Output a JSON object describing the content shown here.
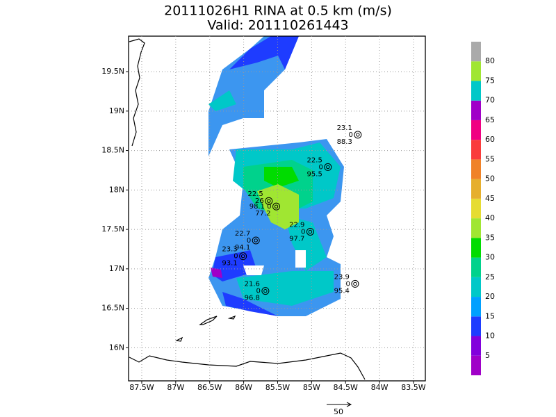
{
  "title": [
    "20111026H1 RINA at 0.5 km (m/s)",
    "Valid: 201110261443"
  ],
  "map": {
    "xlim": [
      -87.694,
      -83.326
    ],
    "ylim": [
      15.58,
      19.95
    ],
    "xticks": [
      {
        "value": -87.5,
        "label": "87.5W"
      },
      {
        "value": -87,
        "label": "87W"
      },
      {
        "value": -86.5,
        "label": "86.5W"
      },
      {
        "value": -86,
        "label": "86W"
      },
      {
        "value": -85.5,
        "label": "85.5W"
      },
      {
        "value": -85,
        "label": "85W"
      },
      {
        "value": -84.5,
        "label": "84.5W"
      },
      {
        "value": -84,
        "label": "84W"
      },
      {
        "value": -83.5,
        "label": "83.5W"
      }
    ],
    "yticks": [
      {
        "value": 16,
        "label": "16N"
      },
      {
        "value": 16.5,
        "label": "16.5N"
      },
      {
        "value": 17,
        "label": "17N"
      },
      {
        "value": 17.5,
        "label": "17.5N"
      },
      {
        "value": 18,
        "label": "18N"
      },
      {
        "value": 18.5,
        "label": "18.5N"
      },
      {
        "value": 19,
        "label": "19N"
      },
      {
        "value": 19.5,
        "label": "19.5N"
      }
    ],
    "grid": true
  },
  "stations": [
    {
      "lon": -84.32,
      "lat": 18.7,
      "top": "23.1",
      "mid": "0",
      "bottom": "88.3"
    },
    {
      "lon": -84.76,
      "lat": 18.29,
      "top": "22.5",
      "mid": "0",
      "bottom": "95.5"
    },
    {
      "lon": -85.63,
      "lat": 17.86,
      "top": "22.5",
      "mid": "26"
    },
    {
      "lon": -85.52,
      "lat": 17.79,
      "mid": "98.1 0",
      "bottom": "77.2"
    },
    {
      "lon": -85.02,
      "lat": 17.47,
      "top": "22.9",
      "mid": "0",
      "bottom": "97.7"
    },
    {
      "lon": -85.82,
      "lat": 17.36,
      "top": "22.7",
      "mid": "0",
      "bottom": "94.1"
    },
    {
      "lon": -86.01,
      "lat": 17.16,
      "top": "23.3",
      "mid": "0",
      "bottom": "93.1"
    },
    {
      "lon": -84.36,
      "lat": 16.81,
      "top": "23.9",
      "mid": "0",
      "bottom": "95.4"
    },
    {
      "lon": -85.68,
      "lat": 16.72,
      "top": "21.6",
      "mid": "0",
      "bottom": "96.8"
    }
  ],
  "colorbar": {
    "levels": [
      5,
      10,
      15,
      20,
      25,
      30,
      35,
      40,
      45,
      50,
      55,
      60,
      65,
      70,
      75,
      80
    ],
    "colors": [
      "#a000c8",
      "#8200dc",
      "#1e3cff",
      "#00a0ff",
      "#00c8c8",
      "#00d28c",
      "#00dc00",
      "#a0e632",
      "#e6dc32",
      "#e6af2d",
      "#f08228",
      "#fa3c3c",
      "#f00082",
      "#a000c8",
      "#00c8c8",
      "#a0e632",
      "#aaaaaa"
    ]
  },
  "reference_vector": "50"
}
